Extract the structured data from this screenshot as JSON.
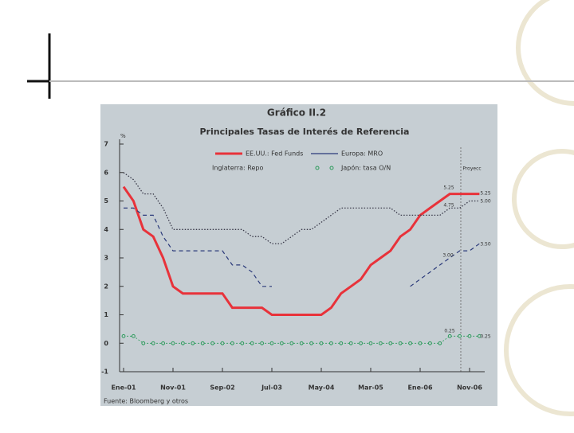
{
  "chart_data": {
    "type": "line",
    "title": "Gráfico II.2",
    "subtitle": "Principales Tasas de Interés de Referencia",
    "y_unit": "%",
    "source": "Fuente: Bloomberg y otros",
    "categories": [
      "Ene-01",
      null,
      null,
      null,
      null,
      "Nov-01",
      null,
      null,
      null,
      null,
      "Sep-02",
      null,
      null,
      null,
      null,
      "Jul-03",
      null,
      null,
      null,
      null,
      "May-04",
      null,
      null,
      null,
      null,
      "Mar-05",
      null,
      null,
      null,
      null,
      "Ene-06",
      null,
      null,
      null,
      null,
      "Nov-06",
      null
    ],
    "ylim": [
      -1,
      7
    ],
    "yticks": [
      -1,
      0,
      1,
      2,
      3,
      4,
      5,
      6,
      7
    ],
    "series": [
      {
        "name": "EE.UU.: Fed Funds",
        "color": "#e8323a",
        "style": "solid",
        "values": [
          5.5,
          5.0,
          4.0,
          3.75,
          3.0,
          2.0,
          1.75,
          1.75,
          1.75,
          1.75,
          1.75,
          1.25,
          1.25,
          1.25,
          1.25,
          1.0,
          1.0,
          1.0,
          1.0,
          1.0,
          1.0,
          1.25,
          1.75,
          2.0,
          2.25,
          2.75,
          3.0,
          3.25,
          3.75,
          4.0,
          4.5,
          4.75,
          5.0,
          5.25,
          5.25,
          5.25,
          5.25
        ]
      },
      {
        "name": "Europa: MRO",
        "color": "#2b3a7a",
        "style": "dashed",
        "values": [
          4.75,
          4.75,
          4.5,
          4.5,
          3.75,
          3.25,
          3.25,
          3.25,
          3.25,
          3.25,
          3.25,
          2.75,
          2.75,
          2.5,
          2.0,
          2.0,
          null,
          null,
          null,
          null,
          null,
          null,
          null,
          null,
          null,
          null,
          null,
          null,
          null,
          2.0,
          2.25,
          2.5,
          2.75,
          3.0,
          3.25,
          3.25,
          3.5
        ]
      },
      {
        "name": "Inglaterra: Repo",
        "color": "#3a3a4a",
        "style": "dotted",
        "values": [
          6.0,
          5.75,
          5.25,
          5.25,
          4.75,
          4.0,
          4.0,
          4.0,
          4.0,
          4.0,
          4.0,
          4.0,
          4.0,
          3.75,
          3.75,
          3.5,
          3.5,
          3.75,
          4.0,
          4.0,
          4.25,
          4.5,
          4.75,
          4.75,
          4.75,
          4.75,
          4.75,
          4.75,
          4.5,
          4.5,
          4.5,
          4.5,
          4.5,
          4.75,
          4.75,
          5.0,
          5.0
        ]
      },
      {
        "name": "Japón: tasa O/N",
        "color": "#2a9a5a",
        "style": "markers",
        "values": [
          0.25,
          0.25,
          0,
          0,
          0,
          0,
          0,
          0,
          0,
          0,
          0,
          0,
          0,
          0,
          0,
          0,
          0,
          0,
          0,
          0,
          0,
          0,
          0,
          0,
          0,
          0,
          0,
          0,
          0,
          0,
          0,
          0,
          0,
          0.25,
          0.25,
          0.25,
          0.25
        ]
      }
    ],
    "annotations": [
      "5.25",
      "5.25",
      "5.00",
      "4.75",
      "3.00",
      "3.50",
      "0.25",
      "0.25",
      "Proyecc"
    ],
    "grid": false
  }
}
